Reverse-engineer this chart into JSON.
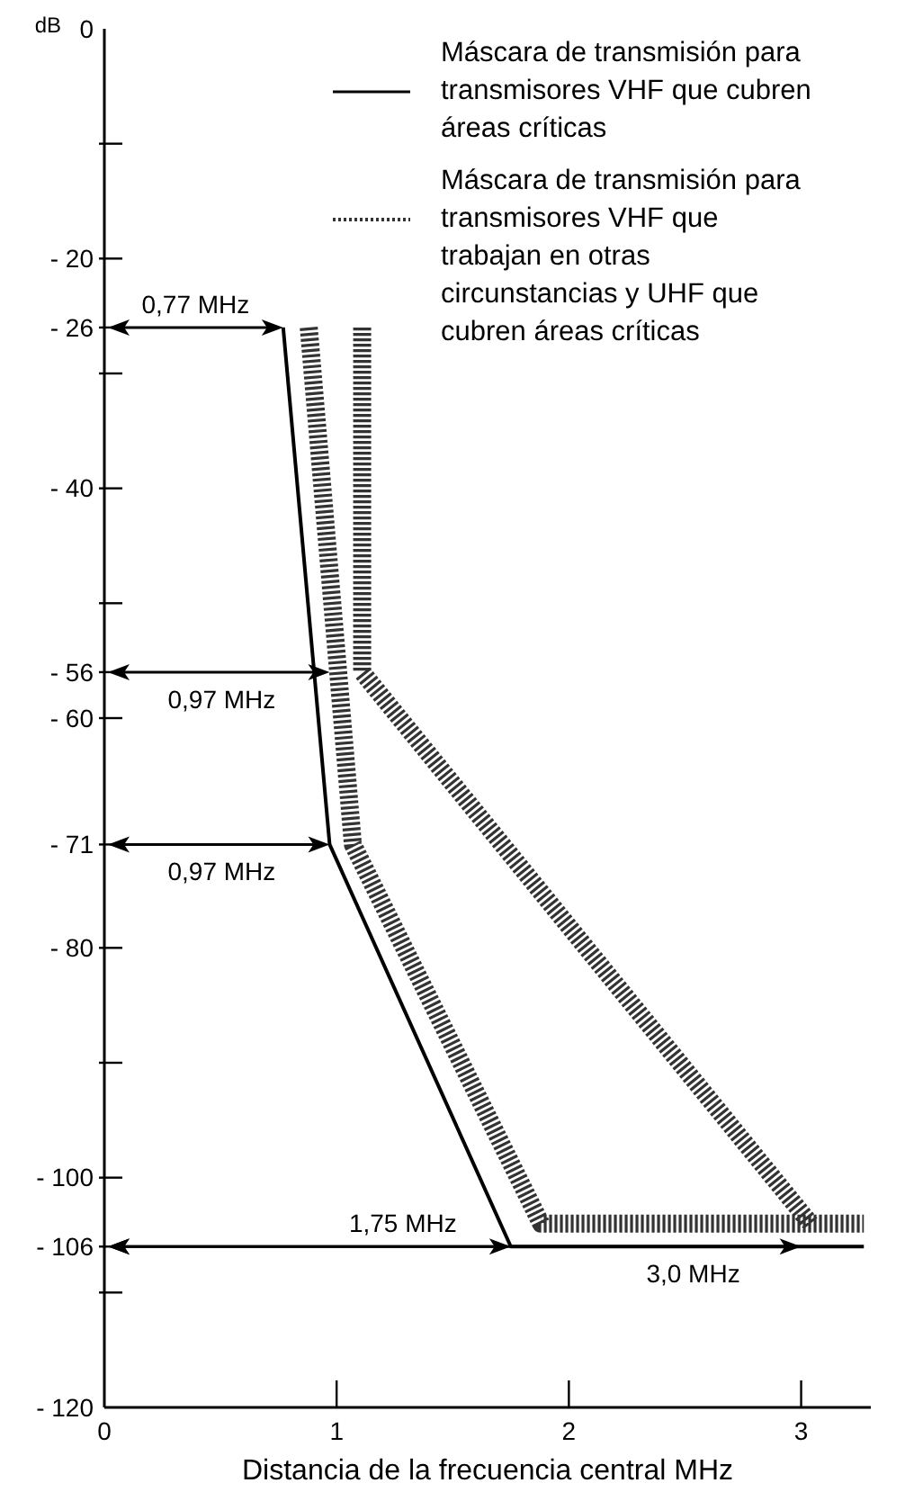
{
  "chart_data": {
    "type": "line",
    "xlabel": "Distancia de la frecuencia central MHz",
    "ylabel": "dB",
    "xlim": [
      0,
      3.3
    ],
    "ylim": [
      -120,
      0
    ],
    "xticks": [
      0,
      1,
      2,
      3
    ],
    "yticks": [
      0,
      {
        "value": -10,
        "label": null
      },
      {
        "value": -20,
        "label": "- 20"
      },
      {
        "value": -26,
        "label": "- 26"
      },
      {
        "value": -30,
        "label": null
      },
      {
        "value": -40,
        "label": "- 40"
      },
      {
        "value": -50,
        "label": null
      },
      {
        "value": -56,
        "label": "- 56"
      },
      {
        "value": -60,
        "label": "- 60"
      },
      {
        "value": -71,
        "label": "- 71"
      },
      {
        "value": -80,
        "label": "- 80"
      },
      {
        "value": -90,
        "label": null
      },
      {
        "value": -100,
        "label": "- 100"
      },
      {
        "value": -106,
        "label": "- 106"
      },
      {
        "value": -110,
        "label": null
      },
      {
        "value": -120,
        "label": "- 120"
      }
    ],
    "legend": "top right",
    "marker": "none",
    "series": [
      {
        "name": "Máscara de transmisión para transmisores VHF que cubren áreas críticas",
        "color": "#000000",
        "line_style": "solid",
        "x": [
          0.77,
          0.97,
          1.75,
          3.27
        ],
        "values": [
          -26,
          -71,
          -106,
          -106
        ]
      },
      {
        "name": "Máscara de transmisión para transmisores VHF que trabajan en otras circunstancias y UHF que cubren áreas críticas",
        "color": "#333333",
        "line_style": "dotted",
        "x": [
          0.88,
          1.07,
          1.88,
          3.27,
          null,
          1.11,
          1.11,
          3.04
        ],
        "values": [
          -26,
          -71,
          -104,
          -104,
          null,
          -26,
          -56,
          -104
        ]
      }
    ],
    "annotations": [
      {
        "text": "0,77 MHz",
        "x": 0.77,
        "y": -26
      },
      {
        "text": "0,97 MHz",
        "x": 0.97,
        "y": -56
      },
      {
        "text": "0,97 MHz",
        "x": 0.97,
        "y": -71
      },
      {
        "text": "1,75 MHz",
        "x": 1.75,
        "y": -106
      },
      {
        "text": "3,0 MHz",
        "x": 3.0,
        "y": -106
      }
    ]
  }
}
